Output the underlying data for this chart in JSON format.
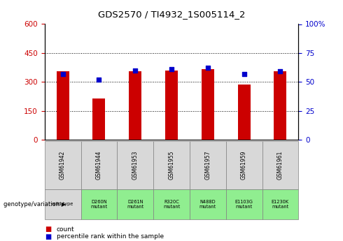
{
  "title": "GDS2570 / TI4932_1S005114_2",
  "samples": [
    "GSM61942",
    "GSM61944",
    "GSM61953",
    "GSM61955",
    "GSM61957",
    "GSM61959",
    "GSM61961"
  ],
  "genotypes": [
    "wild type",
    "D260N\nmutant",
    "D261N\nmutant",
    "R320C\nmutant",
    "N488D\nmutant",
    "E1103G\nmutant",
    "E1230K\nmutant"
  ],
  "counts": [
    355,
    215,
    355,
    360,
    365,
    285,
    355
  ],
  "percentiles": [
    57,
    52,
    60,
    61,
    62,
    57,
    59
  ],
  "ylim_left": [
    0,
    600
  ],
  "ylim_right": [
    0,
    100
  ],
  "yticks_left": [
    0,
    150,
    300,
    450,
    600
  ],
  "yticks_right": [
    0,
    25,
    50,
    75,
    100
  ],
  "ytick_labels_right": [
    "0",
    "25",
    "50",
    "75",
    "100%"
  ],
  "bar_color": "#cc0000",
  "dot_color": "#0000cc",
  "grid_color": "black",
  "bg_color": "#d8d8d8",
  "wildtype_bg": "#d8d8d8",
  "mutant_bg": "#90ee90",
  "left_tick_color": "#cc0000",
  "right_tick_color": "#0000cc",
  "legend_count_color": "#cc0000",
  "legend_pct_color": "#0000cc",
  "hlines": [
    150,
    300,
    450
  ],
  "bar_width": 0.35
}
